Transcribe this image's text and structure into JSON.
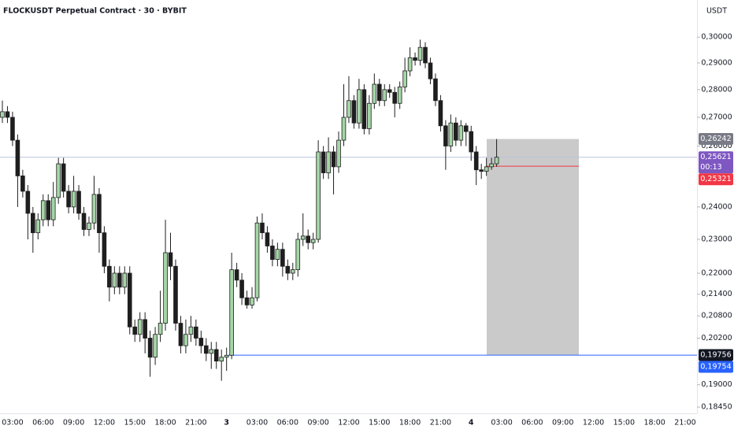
{
  "chart_data": {
    "type": "candlestick",
    "title": "FLOCKUSDT Perpetual Contract · 30 · BYBIT",
    "currency": "USDT",
    "log_scale": true,
    "up_color": "#a5d6a7",
    "down_color": "#1e1e1e",
    "ylim": [
      0.183,
      0.315
    ],
    "yticks": [
      {
        "value": 0.3,
        "label": "0,30000"
      },
      {
        "value": 0.29,
        "label": "0,29000"
      },
      {
        "value": 0.28,
        "label": "0,28000"
      },
      {
        "value": 0.27,
        "label": "0,27000"
      },
      {
        "value": 0.26,
        "label": "0,26000"
      },
      {
        "value": 0.24,
        "label": "0,24000"
      },
      {
        "value": 0.23,
        "label": "0,23000"
      },
      {
        "value": 0.22,
        "label": "0,22000"
      },
      {
        "value": 0.214,
        "label": "0,21400"
      },
      {
        "value": 0.208,
        "label": "0,20800"
      },
      {
        "value": 0.202,
        "label": "0,20200"
      },
      {
        "value": 0.19,
        "label": "0,19000"
      },
      {
        "value": 0.1845,
        "label": "0,18450"
      }
    ],
    "categories": [
      null,
      null,
      "03:00",
      null,
      null,
      null,
      null,
      null,
      "06:00",
      null,
      null,
      null,
      null,
      null,
      "09:00",
      null,
      null,
      null,
      null,
      null,
      "12:00",
      null,
      null,
      null,
      null,
      null,
      "15:00",
      null,
      null,
      null,
      null,
      null,
      "18:00",
      null,
      null,
      null,
      null,
      null,
      "21:00",
      null,
      null,
      null,
      null,
      null,
      "3",
      null,
      null,
      null,
      null,
      null,
      "03:00",
      null,
      null,
      null,
      null,
      null,
      "06:00",
      null,
      null,
      null,
      null,
      null,
      "09:00",
      null,
      null,
      null,
      null,
      null,
      "12:00",
      null,
      null,
      null,
      null,
      null,
      "15:00",
      null,
      null,
      null,
      null,
      null,
      "18:00",
      null,
      null,
      null,
      null,
      null,
      "21:00",
      null,
      null,
      null,
      null,
      null,
      "4",
      null,
      null,
      null,
      null,
      null,
      "03:00",
      null,
      null,
      null,
      null,
      null,
      "06:00",
      null,
      null,
      null,
      null,
      null,
      "09:00",
      null,
      null,
      null,
      null,
      null,
      "12:00",
      null,
      null,
      null,
      null,
      null,
      "15:00",
      null,
      null,
      null,
      null,
      null,
      "18:00",
      null,
      null,
      null,
      null,
      null,
      "21:00"
    ],
    "open": [
      0.27,
      0.272,
      0.27,
      0.262,
      0.25,
      0.245,
      0.238,
      0.232,
      0.236,
      0.242,
      0.236,
      0.243,
      0.254,
      0.245,
      0.24,
      0.245,
      0.238,
      0.233,
      0.235,
      0.244,
      0.232,
      0.222,
      0.216,
      0.22,
      0.216,
      0.22,
      0.205,
      0.203,
      0.207,
      0.202,
      0.197,
      0.203,
      0.206,
      0.226,
      0.222,
      0.206,
      0.2,
      0.203,
      0.205,
      0.202,
      0.2,
      0.198,
      0.199,
      0.196,
      0.197,
      0.1975,
      0.221,
      0.218,
      0.213,
      0.211,
      0.213,
      0.235,
      0.232,
      0.228,
      0.224,
      0.227,
      0.222,
      0.22,
      0.221,
      0.23,
      0.231,
      0.229,
      0.23,
      0.258,
      0.251,
      0.258,
      0.253,
      0.262,
      0.27,
      0.276,
      0.268,
      0.28,
      0.266,
      0.275,
      0.282,
      0.276,
      0.28,
      0.279,
      0.275,
      0.281,
      0.287,
      0.292,
      0.291,
      0.296,
      0.29,
      0.284,
      0.276,
      0.267,
      0.26,
      0.268,
      0.262,
      0.267,
      0.265,
      0.258,
      0.252,
      0.2515,
      0.253,
      0.254,
      null,
      null,
      null,
      null,
      null,
      null,
      null,
      null,
      null,
      null,
      null,
      null,
      null,
      null,
      null,
      null,
      null,
      null,
      null,
      null,
      null,
      null,
      null,
      null,
      null,
      null,
      null,
      null,
      null,
      null,
      null,
      null,
      null,
      null,
      null,
      null,
      null
    ],
    "high": [
      0.276,
      0.274,
      0.272,
      0.264,
      0.252,
      0.247,
      0.24,
      0.238,
      0.244,
      0.244,
      0.248,
      0.256,
      0.256,
      0.247,
      0.25,
      0.247,
      0.24,
      0.237,
      0.25,
      0.246,
      0.234,
      0.224,
      0.222,
      0.222,
      0.222,
      0.222,
      0.207,
      0.209,
      0.209,
      0.204,
      0.205,
      0.215,
      0.236,
      0.232,
      0.224,
      0.208,
      0.207,
      0.208,
      0.207,
      0.204,
      0.202,
      0.201,
      0.201,
      0.199,
      0.1995,
      0.226,
      0.223,
      0.22,
      0.215,
      0.216,
      0.237,
      0.238,
      0.234,
      0.23,
      0.229,
      0.229,
      0.224,
      0.223,
      0.232,
      0.238,
      0.233,
      0.232,
      0.262,
      0.26,
      0.263,
      0.26,
      0.265,
      0.282,
      0.285,
      0.278,
      0.284,
      0.282,
      0.278,
      0.286,
      0.284,
      0.282,
      0.282,
      0.281,
      0.283,
      0.292,
      0.296,
      0.294,
      0.299,
      0.298,
      0.292,
      0.286,
      0.278,
      0.269,
      0.271,
      0.27,
      0.269,
      0.268,
      0.267,
      0.26,
      0.254,
      0.256,
      0.256,
      0.2624,
      null,
      null,
      null,
      null,
      null,
      null,
      null,
      null,
      null,
      null,
      null,
      null,
      null,
      null,
      null,
      null,
      null,
      null,
      null,
      null,
      null,
      null,
      null,
      null,
      null,
      null,
      null,
      null,
      null,
      null,
      null,
      null,
      null,
      null,
      null,
      null,
      null
    ],
    "low": [
      0.268,
      0.268,
      0.26,
      0.24,
      0.243,
      0.23,
      0.226,
      0.23,
      0.234,
      0.234,
      0.234,
      0.241,
      0.243,
      0.238,
      0.238,
      0.236,
      0.231,
      0.231,
      0.233,
      0.226,
      0.22,
      0.212,
      0.214,
      0.214,
      0.214,
      0.203,
      0.201,
      0.201,
      0.198,
      0.192,
      0.195,
      0.201,
      0.204,
      0.218,
      0.204,
      0.198,
      0.198,
      0.201,
      0.2,
      0.198,
      0.196,
      0.194,
      0.194,
      0.191,
      0.1935,
      0.1965,
      0.216,
      0.211,
      0.21,
      0.21,
      0.212,
      0.23,
      0.226,
      0.222,
      0.222,
      0.219,
      0.218,
      0.218,
      0.219,
      0.228,
      0.227,
      0.227,
      0.229,
      0.249,
      0.249,
      0.244,
      0.251,
      0.26,
      0.268,
      0.266,
      0.266,
      0.264,
      0.264,
      0.273,
      0.274,
      0.274,
      0.277,
      0.27,
      0.273,
      0.279,
      0.285,
      0.289,
      0.289,
      0.288,
      0.282,
      0.274,
      0.265,
      0.252,
      0.258,
      0.26,
      0.26,
      0.26,
      0.255,
      0.247,
      0.249,
      0.25,
      0.252,
      0.253,
      null,
      null,
      null,
      null,
      null,
      null,
      null,
      null,
      null,
      null,
      null,
      null,
      null,
      null,
      null,
      null,
      null,
      null,
      null,
      null,
      null,
      null,
      null,
      null,
      null,
      null,
      null,
      null,
      null,
      null,
      null,
      null,
      null,
      null,
      null,
      null,
      null
    ],
    "close": [
      0.272,
      0.27,
      0.262,
      0.25,
      0.245,
      0.238,
      0.232,
      0.236,
      0.242,
      0.236,
      0.243,
      0.254,
      0.245,
      0.24,
      0.245,
      0.238,
      0.233,
      0.235,
      0.244,
      0.232,
      0.222,
      0.216,
      0.22,
      0.216,
      0.22,
      0.205,
      0.203,
      0.207,
      0.202,
      0.197,
      0.203,
      0.206,
      0.226,
      0.222,
      0.206,
      0.2,
      0.203,
      0.205,
      0.202,
      0.2,
      0.198,
      0.199,
      0.196,
      0.197,
      0.1975,
      0.221,
      0.218,
      0.213,
      0.211,
      0.213,
      0.235,
      0.232,
      0.228,
      0.224,
      0.227,
      0.222,
      0.22,
      0.221,
      0.23,
      0.231,
      0.229,
      0.23,
      0.258,
      0.251,
      0.258,
      0.253,
      0.262,
      0.27,
      0.276,
      0.268,
      0.28,
      0.266,
      0.275,
      0.282,
      0.276,
      0.28,
      0.279,
      0.275,
      0.281,
      0.287,
      0.292,
      0.291,
      0.296,
      0.29,
      0.284,
      0.276,
      0.267,
      0.26,
      0.268,
      0.262,
      0.267,
      0.265,
      0.258,
      0.252,
      0.2515,
      0.253,
      0.254,
      0.2562,
      null,
      null,
      null,
      null,
      null,
      null,
      null,
      null,
      null,
      null,
      null,
      null,
      null,
      null,
      null,
      null,
      null,
      null,
      null,
      null,
      null,
      null,
      null,
      null,
      null,
      null,
      null,
      null,
      null,
      null,
      null,
      null,
      null,
      null,
      null,
      null,
      null
    ],
    "price_labels": [
      {
        "value": 0.26242,
        "label": "0,26242",
        "color": "#787b86"
      },
      {
        "value": 0.25621,
        "label": "0,25621",
        "color": "#7e57c2"
      },
      {
        "value": 0.25321,
        "label": "0,25321",
        "color": "#f23645"
      },
      {
        "value": 0.19756,
        "label": "0,19756",
        "color": "#131722"
      },
      {
        "value": 0.19754,
        "label": "0,19754",
        "color": "#2962ff"
      }
    ],
    "countdown": "00:13"
  }
}
